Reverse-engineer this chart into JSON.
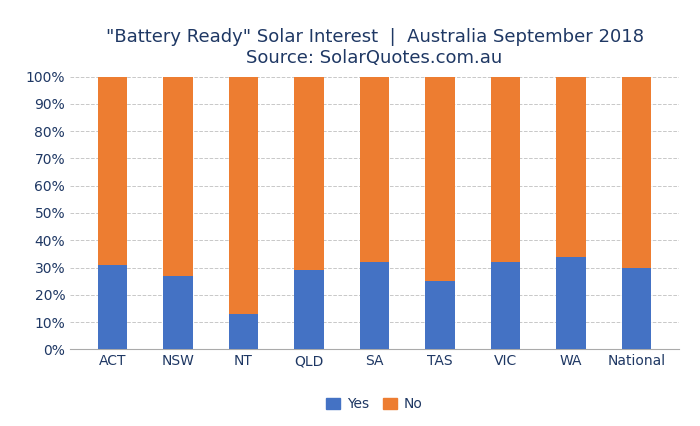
{
  "categories": [
    "ACT",
    "NSW",
    "NT",
    "QLD",
    "SA",
    "TAS",
    "VIC",
    "WA",
    "National"
  ],
  "yes_values": [
    31,
    27,
    13,
    29,
    32,
    25,
    32,
    34,
    30
  ],
  "no_values": [
    69,
    73,
    87,
    71,
    68,
    75,
    68,
    66,
    70
  ],
  "yes_color": "#4472C4",
  "no_color": "#ED7D31",
  "title_line1": "\"Battery Ready\" Solar Interest  |  Australia September 2018",
  "title_line2": "Source: SolarQuotes.com.au",
  "ylim": [
    0,
    100
  ],
  "yticks": [
    0,
    10,
    20,
    30,
    40,
    50,
    60,
    70,
    80,
    90,
    100
  ],
  "ytick_labels": [
    "0%",
    "10%",
    "20%",
    "30%",
    "40%",
    "50%",
    "60%",
    "70%",
    "80%",
    "90%",
    "100%"
  ],
  "legend_yes": "Yes",
  "legend_no": "No",
  "background_color": "#ffffff",
  "grid_color": "#c8c8c8",
  "bar_width": 0.45,
  "title_fontsize": 13,
  "tick_fontsize": 10,
  "legend_fontsize": 10,
  "title_color": "#1F3864",
  "tick_color": "#1F3864"
}
